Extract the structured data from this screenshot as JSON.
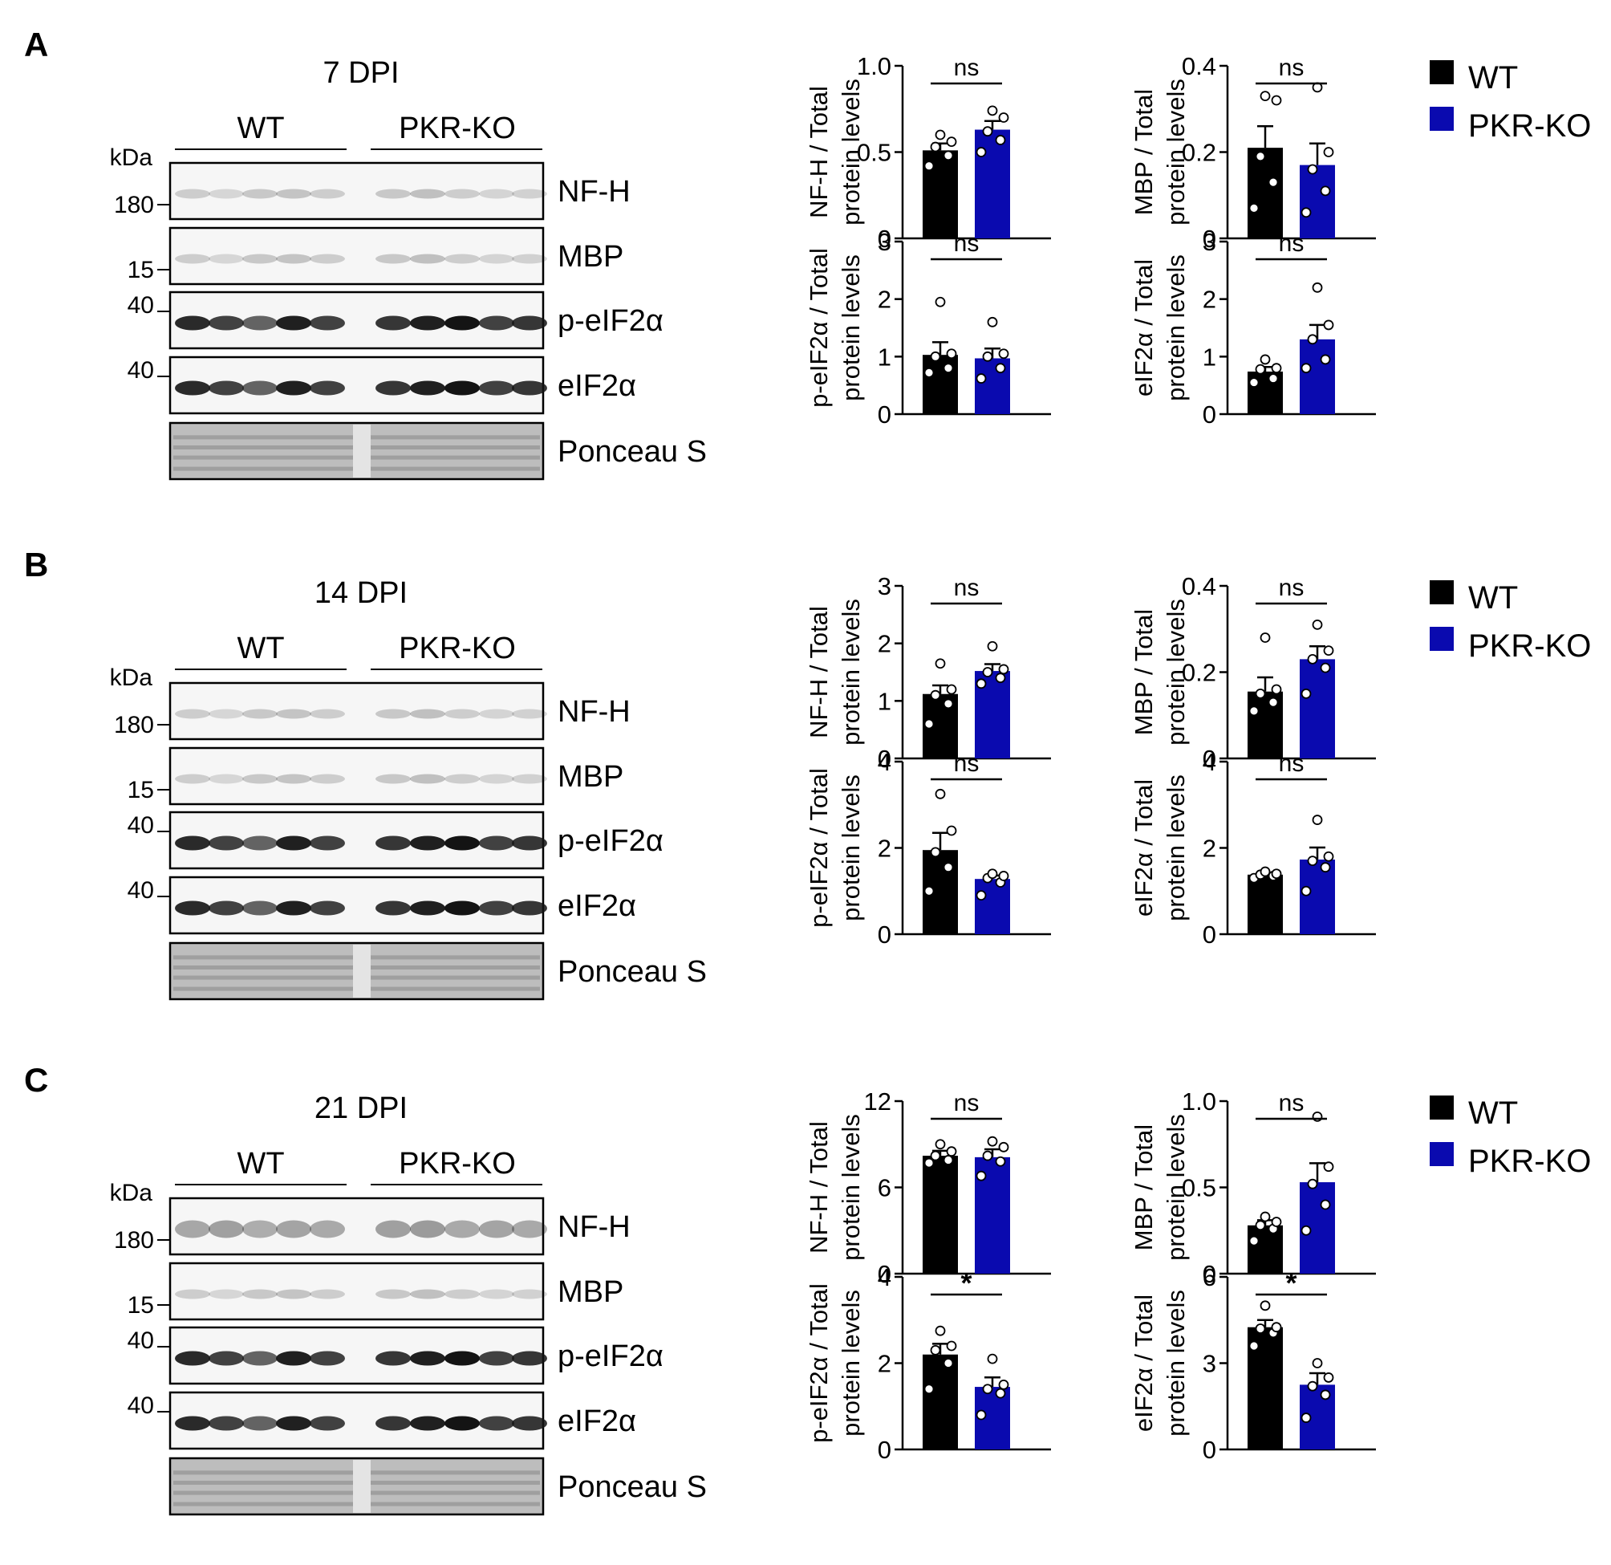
{
  "colors": {
    "wt": "#000000",
    "ko": "#0a0aaf",
    "blot_bg": "#f6f6f6",
    "band": "#141414",
    "ponceau_bg": "#bdbdbd"
  },
  "legend": {
    "wt_label": "WT",
    "ko_label": "PKR-KO"
  },
  "panels": [
    {
      "letter": "A",
      "title": "7 DPI",
      "group_wt": "WT",
      "group_ko": "PKR-KO",
      "kda_label": "kDa",
      "blots": [
        {
          "label": "NF-H",
          "marker": "180",
          "kind": "faint"
        },
        {
          "label": "MBP",
          "marker": "15",
          "kind": "faint"
        },
        {
          "label": "p-eIF2α",
          "marker": "40",
          "kind": "strong"
        },
        {
          "label": "eIF2α",
          "marker": "40",
          "kind": "strong"
        },
        {
          "label": "Ponceau S",
          "marker": "",
          "kind": "ponceau"
        }
      ]
    },
    {
      "letter": "B",
      "title": "14 DPI",
      "group_wt": "WT",
      "group_ko": "PKR-KO",
      "kda_label": "kDa",
      "blots": [
        {
          "label": "NF-H",
          "marker": "180",
          "kind": "faint"
        },
        {
          "label": "MBP",
          "marker": "15",
          "kind": "faint"
        },
        {
          "label": "p-eIF2α",
          "marker": "40",
          "kind": "strong"
        },
        {
          "label": "eIF2α",
          "marker": "40",
          "kind": "strong"
        },
        {
          "label": "Ponceau S",
          "marker": "",
          "kind": "ponceau"
        }
      ]
    },
    {
      "letter": "C",
      "title": "21 DPI",
      "group_wt": "WT",
      "group_ko": "PKR-KO",
      "kda_label": "kDa",
      "blots": [
        {
          "label": "NF-H",
          "marker": "180",
          "kind": "medium"
        },
        {
          "label": "MBP",
          "marker": "15",
          "kind": "faint"
        },
        {
          "label": "p-eIF2α",
          "marker": "40",
          "kind": "strong"
        },
        {
          "label": "eIF2α",
          "marker": "40",
          "kind": "strong"
        },
        {
          "label": "Ponceau S",
          "marker": "",
          "kind": "ponceau"
        }
      ]
    }
  ],
  "chart_data": [
    {
      "type": "bar",
      "panel": "A",
      "ylabel": [
        "NF-H / Total",
        "protein levels"
      ],
      "ylim": [
        0,
        1.0
      ],
      "yticks": [
        "0",
        "0.5",
        "1.0"
      ],
      "categories": [
        "WT",
        "PKR-KO"
      ],
      "values": [
        0.51,
        0.63
      ],
      "errors": [
        0.04,
        0.05
      ],
      "points": [
        [
          0.42,
          0.48,
          0.53,
          0.56,
          0.6
        ],
        [
          0.5,
          0.57,
          0.62,
          0.7,
          0.74
        ]
      ],
      "significance": "ns"
    },
    {
      "type": "bar",
      "panel": "A",
      "ylabel": [
        "MBP / Total",
        "protein levels"
      ],
      "ylim": [
        0,
        0.4
      ],
      "yticks": [
        "0",
        "0.2",
        "0.4"
      ],
      "categories": [
        "WT",
        "PKR-KO"
      ],
      "values": [
        0.21,
        0.17
      ],
      "errors": [
        0.05,
        0.05
      ],
      "points": [
        [
          0.07,
          0.13,
          0.19,
          0.32,
          0.33
        ],
        [
          0.06,
          0.11,
          0.16,
          0.2,
          0.35
        ]
      ],
      "significance": "ns"
    },
    {
      "type": "bar",
      "panel": "A",
      "ylabel": [
        "p-eIF2α / Total",
        "protein levels"
      ],
      "ylim": [
        0,
        3
      ],
      "yticks": [
        "0",
        "1",
        "2",
        "3"
      ],
      "categories": [
        "WT",
        "PKR-KO"
      ],
      "values": [
        1.03,
        0.97
      ],
      "errors": [
        0.22,
        0.17
      ],
      "points": [
        [
          0.72,
          0.8,
          1.0,
          1.05,
          1.95
        ],
        [
          0.62,
          0.8,
          1.0,
          1.05,
          1.6
        ]
      ],
      "significance": "ns"
    },
    {
      "type": "bar",
      "panel": "A",
      "ylabel": [
        "eIF2α / Total",
        "protein levels"
      ],
      "ylim": [
        0,
        3
      ],
      "yticks": [
        "0",
        "1",
        "2",
        "3"
      ],
      "categories": [
        "WT",
        "PKR-KO"
      ],
      "values": [
        0.74,
        1.3
      ],
      "errors": [
        0.08,
        0.25
      ],
      "points": [
        [
          0.55,
          0.62,
          0.78,
          0.8,
          0.95
        ],
        [
          0.8,
          0.95,
          1.3,
          1.55,
          2.2
        ]
      ],
      "significance": "ns"
    },
    {
      "type": "bar",
      "panel": "B",
      "ylabel": [
        "NF-H / Total",
        "protein levels"
      ],
      "ylim": [
        0,
        3
      ],
      "yticks": [
        "0",
        "1",
        "2",
        "3"
      ],
      "categories": [
        "WT",
        "PKR-KO"
      ],
      "values": [
        1.12,
        1.52
      ],
      "errors": [
        0.15,
        0.12
      ],
      "points": [
        [
          0.6,
          0.95,
          1.1,
          1.2,
          1.65
        ],
        [
          1.3,
          1.4,
          1.5,
          1.55,
          1.95
        ]
      ],
      "significance": "ns"
    },
    {
      "type": "bar",
      "panel": "B",
      "ylabel": [
        "MBP / Total",
        "protein levels"
      ],
      "ylim": [
        0,
        0.4
      ],
      "yticks": [
        "0",
        "0.2",
        "0.4"
      ],
      "categories": [
        "WT",
        "PKR-KO"
      ],
      "values": [
        0.155,
        0.23
      ],
      "errors": [
        0.033,
        0.03
      ],
      "points": [
        [
          0.11,
          0.13,
          0.15,
          0.16,
          0.28
        ],
        [
          0.15,
          0.21,
          0.23,
          0.25,
          0.31
        ]
      ],
      "significance": "ns"
    },
    {
      "type": "bar",
      "panel": "B",
      "ylabel": [
        "p-eIF2α / Total",
        "protein levels"
      ],
      "ylim": [
        0,
        4
      ],
      "yticks": [
        "0",
        "2",
        "4"
      ],
      "categories": [
        "WT",
        "PKR-KO"
      ],
      "values": [
        1.95,
        1.28
      ],
      "errors": [
        0.4,
        0.08
      ],
      "points": [
        [
          1.0,
          1.55,
          1.9,
          2.4,
          3.25
        ],
        [
          0.9,
          1.2,
          1.3,
          1.35,
          1.4
        ]
      ],
      "significance": "ns"
    },
    {
      "type": "bar",
      "panel": "B",
      "ylabel": [
        "eIF2α / Total",
        "protein levels"
      ],
      "ylim": [
        0,
        4
      ],
      "yticks": [
        "0",
        "2",
        "4"
      ],
      "categories": [
        "WT",
        "PKR-KO"
      ],
      "values": [
        1.38,
        1.73
      ],
      "errors": [
        0.03,
        0.28
      ],
      "points": [
        [
          1.3,
          1.35,
          1.38,
          1.4,
          1.45
        ],
        [
          1.0,
          1.55,
          1.7,
          1.8,
          2.65
        ]
      ],
      "significance": "ns"
    },
    {
      "type": "bar",
      "panel": "C",
      "ylabel": [
        "NF-H / Total",
        "protein levels"
      ],
      "ylim": [
        0,
        12
      ],
      "yticks": [
        "0",
        "6",
        "12"
      ],
      "categories": [
        "WT",
        "PKR-KO"
      ],
      "values": [
        8.2,
        8.1
      ],
      "errors": [
        0.35,
        0.55
      ],
      "points": [
        [
          7.7,
          7.9,
          8.2,
          8.5,
          9.0
        ],
        [
          6.8,
          7.8,
          8.2,
          8.8,
          9.2
        ]
      ],
      "significance": "ns"
    },
    {
      "type": "bar",
      "panel": "C",
      "ylabel": [
        "MBP / Total",
        "protein levels"
      ],
      "ylim": [
        0,
        1.0
      ],
      "yticks": [
        "0",
        "0.5",
        "1.0"
      ],
      "categories": [
        "WT",
        "PKR-KO"
      ],
      "values": [
        0.28,
        0.53
      ],
      "errors": [
        0.03,
        0.11
      ],
      "points": [
        [
          0.19,
          0.26,
          0.28,
          0.3,
          0.33
        ],
        [
          0.25,
          0.4,
          0.52,
          0.62,
          0.91
        ]
      ],
      "significance": "ns"
    },
    {
      "type": "bar",
      "panel": "C",
      "ylabel": [
        "p-eIF2α / Total",
        "protein levels"
      ],
      "ylim": [
        0,
        4
      ],
      "yticks": [
        "0",
        "2",
        "4"
      ],
      "categories": [
        "WT",
        "PKR-KO"
      ],
      "values": [
        2.2,
        1.45
      ],
      "errors": [
        0.25,
        0.22
      ],
      "points": [
        [
          1.4,
          2.0,
          2.3,
          2.4,
          2.75
        ],
        [
          0.8,
          1.3,
          1.4,
          1.5,
          2.1
        ]
      ],
      "significance": "*"
    },
    {
      "type": "bar",
      "panel": "C",
      "ylabel": [
        "eIF2α / Total",
        "protein levels"
      ],
      "ylim": [
        0,
        6
      ],
      "yticks": [
        "0",
        "3",
        "6"
      ],
      "categories": [
        "WT",
        "PKR-KO"
      ],
      "values": [
        4.25,
        2.25
      ],
      "errors": [
        0.25,
        0.4
      ],
      "points": [
        [
          3.6,
          4.05,
          4.2,
          4.25,
          5.0
        ],
        [
          1.1,
          1.9,
          2.2,
          2.5,
          3.0
        ]
      ],
      "significance": "*"
    }
  ]
}
